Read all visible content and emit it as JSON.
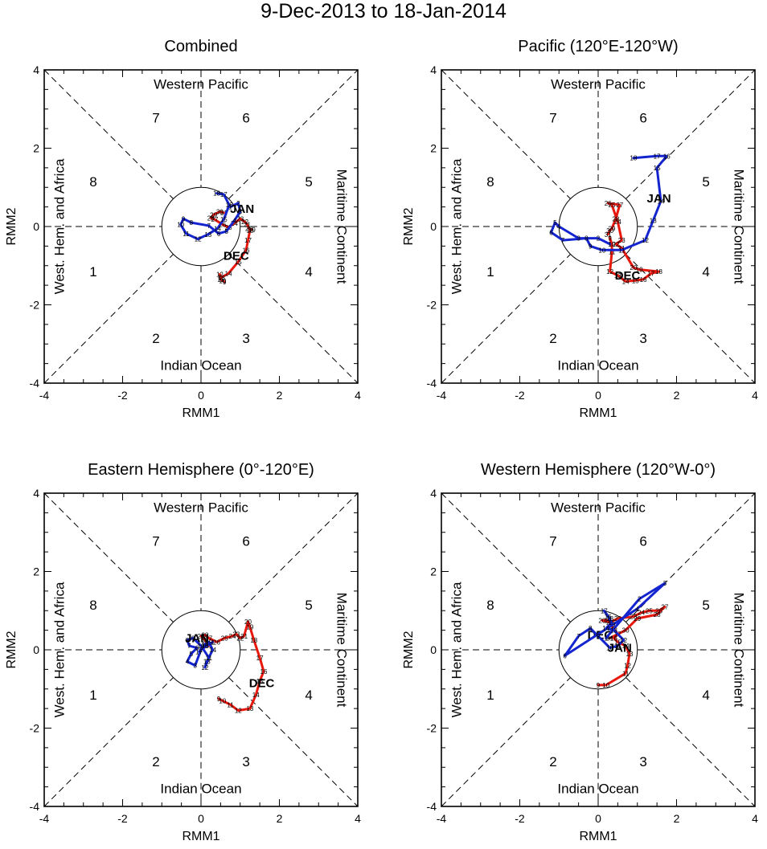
{
  "title": "9-Dec-2013 to 18-Jan-2014",
  "colors": {
    "dec": "#e8180c",
    "jan": "#1425d0",
    "axis": "#000000",
    "background": "#ffffff"
  },
  "phase_labels": {
    "top": "Western Pacific",
    "bottom": "Indian Ocean",
    "left": "West. Hem. and Africa",
    "right": "Maritime Continent"
  },
  "octant_numbers": [
    "1",
    "2",
    "3",
    "4",
    "5",
    "6",
    "7",
    "8"
  ],
  "chart_data": [
    {
      "type": "line",
      "title": "Combined",
      "xlabel": "RMM1",
      "ylabel": "RMM2",
      "xlim": [
        -4,
        4
      ],
      "ylim": [
        -4,
        4
      ],
      "xticks": [
        "-4",
        "-2",
        "0",
        "2",
        "4"
      ],
      "yticks": [
        "-4",
        "-2",
        "0",
        "2",
        "4"
      ],
      "unit_circle_radius": 1,
      "series": [
        {
          "name": "DEC",
          "color": "red",
          "label_at": [
            0.9,
            -0.75
          ],
          "days": [
            9,
            10,
            11,
            12,
            13,
            14,
            15,
            16,
            17,
            18,
            19,
            20,
            21,
            22,
            23,
            24,
            25,
            26,
            27,
            28,
            29,
            30,
            31
          ],
          "x": [
            0.6,
            0.55,
            0.5,
            0.48,
            0.52,
            0.7,
            0.95,
            1.15,
            1.2,
            1.25,
            1.3,
            1.22,
            1.18,
            1.12,
            1.0,
            0.85,
            0.7,
            0.55,
            0.35,
            0.25,
            0.32,
            0.48,
            0.58
          ],
          "y": [
            -1.42,
            -1.38,
            -1.35,
            -1.22,
            -1.3,
            -1.2,
            -0.9,
            -0.6,
            -0.35,
            -0.1,
            -0.08,
            -0.05,
            0.05,
            0.12,
            0.2,
            0.08,
            -0.02,
            0.05,
            0.18,
            0.22,
            0.3,
            0.38,
            0.35
          ]
        },
        {
          "name": "JAN",
          "color": "blue",
          "label_at": [
            1.05,
            0.45
          ],
          "days": [
            1,
            2,
            3,
            4,
            5,
            6,
            7,
            8,
            9,
            10,
            11,
            12,
            13,
            14,
            15,
            16,
            17,
            18
          ],
          "x": [
            0.75,
            0.95,
            1.0,
            0.85,
            0.65,
            0.45,
            0.2,
            -0.25,
            -0.45,
            -0.52,
            -0.38,
            -0.08,
            0.18,
            0.42,
            0.58,
            0.72,
            0.58,
            0.4
          ],
          "y": [
            0.5,
            0.6,
            0.38,
            0.15,
            -0.12,
            -0.18,
            0.02,
            0.1,
            0.2,
            0.05,
            -0.18,
            -0.32,
            -0.2,
            -0.05,
            0.18,
            0.55,
            0.82,
            0.85
          ]
        }
      ]
    },
    {
      "type": "line",
      "title": "Pacific (120°E-120°W)",
      "xlabel": "RMM1",
      "ylabel": "RMM2",
      "xlim": [
        -4,
        4
      ],
      "ylim": [
        -4,
        4
      ],
      "xticks": [
        "-4",
        "-2",
        "0",
        "2",
        "4"
      ],
      "yticks": [
        "-4",
        "-2",
        "0",
        "2",
        "4"
      ],
      "unit_circle_radius": 1,
      "series": [
        {
          "name": "DEC",
          "color": "red",
          "label_at": [
            0.75,
            -1.25
          ],
          "days": [
            9,
            10,
            11,
            12,
            13,
            14,
            15,
            16,
            17,
            18,
            19,
            20,
            21,
            22,
            23,
            24,
            25,
            26,
            27,
            28,
            29,
            30,
            31
          ],
          "x": [
            0.3,
            0.35,
            0.35,
            0.3,
            0.5,
            0.7,
            0.95,
            1.15,
            1.35,
            1.55,
            1.05,
            0.9,
            0.6,
            0.45,
            0.6,
            0.5,
            0.35,
            0.25,
            0.55,
            0.45,
            0.35,
            0.3,
            0.25
          ],
          "y": [
            -0.3,
            -0.45,
            -0.65,
            -1.15,
            -1.25,
            -1.4,
            -1.38,
            -1.35,
            -1.2,
            -1.15,
            -1.1,
            -1.05,
            -0.55,
            -0.45,
            -0.35,
            0.12,
            0.55,
            0.6,
            0.55,
            0.2,
            -0.05,
            -0.1,
            -0.2
          ]
        },
        {
          "name": "JAN",
          "color": "blue",
          "label_at": [
            1.55,
            0.72
          ],
          "days": [
            1,
            2,
            3,
            4,
            5,
            6,
            7,
            8,
            9,
            10,
            11,
            12,
            13,
            14,
            15,
            16,
            17,
            18
          ],
          "x": [
            0.3,
            0.0,
            -0.5,
            -1.0,
            -1.1,
            -1.2,
            -0.9,
            -0.3,
            -0.2,
            0.1,
            0.6,
            1.2,
            1.4,
            1.6,
            1.5,
            1.75,
            1.5,
            0.9
          ],
          "y": [
            -0.45,
            -0.3,
            -0.3,
            0.0,
            0.1,
            -0.15,
            -0.35,
            -0.3,
            -0.5,
            -0.6,
            -0.6,
            -0.35,
            0.15,
            0.65,
            1.5,
            1.8,
            1.8,
            1.75
          ]
        }
      ]
    },
    {
      "type": "line",
      "title": "Eastern Hemisphere (0°-120°E)",
      "xlabel": "RMM1",
      "ylabel": "RMM2",
      "xlim": [
        -4,
        4
      ],
      "ylim": [
        -4,
        4
      ],
      "xticks": [
        "-4",
        "-2",
        "0",
        "2",
        "4"
      ],
      "yticks": [
        "-4",
        "-2",
        "0",
        "2",
        "4"
      ],
      "unit_circle_radius": 1,
      "series": [
        {
          "name": "DEC",
          "color": "red",
          "label_at": [
            1.55,
            -0.85
          ],
          "days": [
            9,
            10,
            11,
            12,
            13,
            14,
            15,
            16,
            17,
            18,
            19,
            20,
            21,
            22,
            23,
            24,
            25,
            26,
            27,
            28,
            29,
            30,
            31
          ],
          "x": [
            0.45,
            0.55,
            0.75,
            0.95,
            1.25,
            1.4,
            1.5,
            1.6,
            1.5,
            1.35,
            1.25,
            1.2,
            1.1,
            1.0,
            0.9,
            0.8,
            0.6,
            0.4,
            0.2,
            0.1,
            0.0,
            0.1,
            0.2
          ],
          "y": [
            -1.25,
            -1.3,
            -1.4,
            -1.55,
            -1.5,
            -1.15,
            -0.8,
            -0.55,
            -0.2,
            0.25,
            0.58,
            0.72,
            0.35,
            0.3,
            0.4,
            0.35,
            0.3,
            0.2,
            0.3,
            0.38,
            0.35,
            0.25,
            0.1
          ]
        },
        {
          "name": "JAN",
          "color": "blue",
          "label_at": [
            -0.1,
            0.3
          ],
          "days": [
            1,
            2,
            3,
            4,
            5,
            6,
            7,
            8,
            9,
            10,
            11,
            12,
            13,
            14,
            15,
            16,
            17,
            18
          ],
          "x": [
            0.3,
            0.0,
            -0.15,
            -0.35,
            -0.25,
            -0.1,
            -0.3,
            -0.35,
            -0.2,
            0.0,
            0.2,
            0.1,
            0.15,
            0.3,
            0.2,
            0.1,
            -0.05,
            0.1
          ],
          "y": [
            0.2,
            0.0,
            -0.4,
            -0.3,
            -0.1,
            0.05,
            0.1,
            0.25,
            0.3,
            0.1,
            -0.2,
            -0.45,
            -0.3,
            0.0,
            0.2,
            0.1,
            -0.05,
            0.15
          ]
        }
      ]
    },
    {
      "type": "line",
      "title": "Western Hemisphere (120°W-0°)",
      "xlabel": "RMM1",
      "ylabel": "RMM2",
      "xlim": [
        -4,
        4
      ],
      "ylim": [
        -4,
        4
      ],
      "xticks": [
        "-4",
        "-2",
        "0",
        "2",
        "4"
      ],
      "yticks": [
        "-4",
        "-2",
        "0",
        "2",
        "4"
      ],
      "unit_circle_radius": 1,
      "series": [
        {
          "name": "DEC",
          "color": "red",
          "label_at": [
            0.05,
            0.38
          ],
          "days": [
            9,
            10,
            11,
            12,
            13,
            14,
            15,
            16,
            17,
            18,
            19,
            20,
            21,
            22,
            23,
            24,
            25,
            26,
            27,
            28,
            29,
            30,
            31
          ],
          "x": [
            0.0,
            0.2,
            0.7,
            0.75,
            0.8,
            0.7,
            0.5,
            0.4,
            0.5,
            0.35,
            0.25,
            0.1,
            0.3,
            0.5,
            0.9,
            1.1,
            1.3,
            1.55,
            1.7,
            1.5,
            1.0,
            0.7,
            0.3
          ],
          "y": [
            -0.9,
            -0.9,
            -0.6,
            -0.4,
            -0.1,
            0.1,
            0.2,
            0.3,
            0.4,
            0.6,
            0.75,
            0.75,
            0.7,
            0.8,
            0.85,
            0.95,
            1.0,
            1.0,
            1.1,
            0.9,
            0.8,
            0.5,
            0.3
          ]
        },
        {
          "name": "JAN",
          "color": "blue",
          "label_at": [
            0.55,
            0.05
          ],
          "days": [
            1,
            2,
            3,
            4,
            5,
            6,
            7,
            8,
            9,
            10,
            11,
            12,
            13,
            14,
            15,
            16,
            17,
            18
          ],
          "x": [
            0.2,
            1.05,
            1.7,
            1.0,
            0.0,
            -0.85,
            -0.5,
            -0.2,
            0.0,
            0.3,
            0.5,
            0.65,
            0.4,
            0.2,
            0.35,
            0.25,
            0.15,
            0.3
          ],
          "y": [
            0.3,
            1.3,
            1.7,
            1.05,
            0.4,
            -0.15,
            0.35,
            0.55,
            0.35,
            0.05,
            0.1,
            0.25,
            0.5,
            0.55,
            0.7,
            0.85,
            1.0,
            0.8
          ]
        }
      ]
    }
  ]
}
